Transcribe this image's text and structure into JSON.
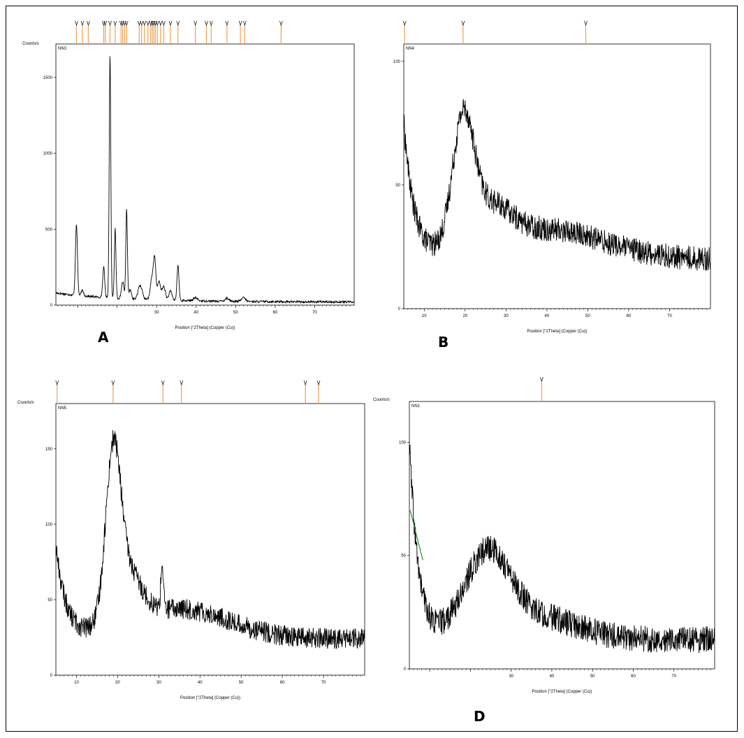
{
  "colors": {
    "trace": "#000000",
    "marker": "#f0a050",
    "fit": "#3a9a3a"
  },
  "chart_data": [
    {
      "type": "line",
      "panel_label": "A",
      "sample_name": "NN3",
      "ylabel": "Counts/s",
      "xlabel": "Position [°2Theta] (Copper (Cu))",
      "xlim": [
        4.5,
        80
      ],
      "ylim": [
        0,
        1720
      ],
      "x_ticks": [
        10,
        20,
        30,
        40,
        50,
        60,
        70
      ],
      "x_tick_labels": [
        "",
        "",
        "30",
        "40",
        "50",
        "60",
        "70"
      ],
      "y_ticks": [
        0,
        500,
        1000,
        1500
      ],
      "y_tick_labels": [
        "0",
        "500",
        "1000",
        "1500"
      ],
      "series": [
        {
          "baseline": {
            "start": 80,
            "end": 20,
            "decay": 18
          },
          "noise": 7,
          "peaks": [
            [
              9.7,
              470,
              0.25
            ],
            [
              11.2,
              35,
              0.3
            ],
            [
              16.6,
              200,
              0.25
            ],
            [
              18.2,
              1600,
              0.2
            ],
            [
              19.5,
              460,
              0.2
            ],
            [
              21.4,
              110,
              0.3
            ],
            [
              22.4,
              590,
              0.2
            ],
            [
              23.3,
              60,
              0.3
            ],
            [
              25.6,
              70,
              0.4
            ],
            [
              26.2,
              50,
              0.4
            ],
            [
              28.8,
              140,
              0.4
            ],
            [
              29.5,
              260,
              0.3
            ],
            [
              30.6,
              120,
              0.4
            ],
            [
              31.8,
              90,
              0.4
            ],
            [
              33.5,
              60,
              0.4
            ],
            [
              35.4,
              230,
              0.25
            ],
            [
              39.8,
              20,
              0.5
            ],
            [
              47.8,
              20,
              0.5
            ],
            [
              52.0,
              25,
              0.5
            ]
          ]
        }
      ],
      "reference_markers": [
        9.7,
        11.2,
        12.7,
        16.6,
        17.0,
        18.2,
        19.5,
        21.0,
        21.4,
        21.9,
        22.4,
        25.6,
        26.2,
        26.9,
        27.8,
        28.5,
        28.9,
        29.3,
        29.7,
        30.2,
        31.0,
        31.8,
        33.5,
        35.4,
        39.8,
        42.6,
        43.8,
        47.8,
        51.2,
        52.3,
        61.5
      ]
    },
    {
      "type": "line",
      "panel_label": "B",
      "sample_name": "NN4",
      "ylabel": "",
      "xlabel": "Position [°2Theta] (Copper (Cu))",
      "xlim": [
        5,
        80
      ],
      "ylim": [
        0,
        107
      ],
      "x_ticks": [
        10,
        20,
        30,
        40,
        50,
        60,
        70
      ],
      "x_tick_labels": [
        "10",
        "20",
        "30",
        "40",
        "50",
        "60",
        "70"
      ],
      "y_ticks": [
        0,
        50,
        100
      ],
      "y_tick_labels": [
        "0",
        "50",
        "100"
      ],
      "series": [
        {
          "baseline": {
            "start": 75,
            "end": 20,
            "decay": 2.5
          },
          "noise": 5,
          "peaks": [
            [
              19.5,
              50,
              2.6
            ],
            [
              26,
              15,
              5
            ],
            [
              40,
              12,
              14
            ]
          ]
        }
      ],
      "reference_markers": [
        5.2,
        19.5,
        49.5
      ]
    },
    {
      "type": "line",
      "panel_label": "",
      "sample_name": "NN5",
      "ylabel": "Counts/s",
      "xlabel": "Position [°2Theta] (Copper (Cu))",
      "xlim": [
        5,
        80
      ],
      "ylim": [
        0,
        180
      ],
      "x_ticks": [
        10,
        20,
        30,
        40,
        50,
        60,
        70
      ],
      "x_tick_labels": [
        "10",
        "20",
        "30",
        "40",
        "50",
        "60",
        "70"
      ],
      "y_ticks": [
        0,
        50,
        100,
        150
      ],
      "y_tick_labels": [
        "0",
        "50",
        "100",
        "150"
      ],
      "series": [
        {
          "baseline": {
            "start": 85,
            "end": 24,
            "decay": 2.5
          },
          "noise": 7,
          "peaks": [
            [
              18.9,
              100,
              1.8
            ],
            [
              22,
              35,
              3.5
            ],
            [
              35,
              20,
              12
            ],
            [
              30.8,
              30,
              0.3
            ]
          ]
        }
      ],
      "reference_markers": [
        5.3,
        18.9,
        31.0,
        35.5,
        65.6,
        68.8
      ]
    },
    {
      "type": "line",
      "panel_label": "D",
      "sample_name": "NN1",
      "ylabel": "Counts/s",
      "xlabel": "Position [°2Theta] (Copper (Cu))",
      "xlim": [
        5,
        80
      ],
      "ylim": [
        0,
        118
      ],
      "x_ticks": [
        10,
        20,
        30,
        40,
        50,
        60,
        70
      ],
      "x_tick_labels": [
        "",
        "",
        "30",
        "40",
        "50",
        "60",
        "70"
      ],
      "y_ticks": [
        0,
        50,
        100
      ],
      "y_tick_labels": [
        "0",
        "50",
        "100"
      ],
      "series": [
        {
          "baseline": {
            "start": 100,
            "end": 13,
            "decay": 2.2
          },
          "noise": 6,
          "peaks": [
            [
              24,
              35,
              5.5
            ],
            [
              36,
              10,
              10
            ]
          ]
        }
      ],
      "fit_segment": {
        "x": [
          5.2,
          8.3
        ],
        "y": [
          70,
          48
        ]
      },
      "reference_markers": [
        37.5
      ]
    }
  ]
}
